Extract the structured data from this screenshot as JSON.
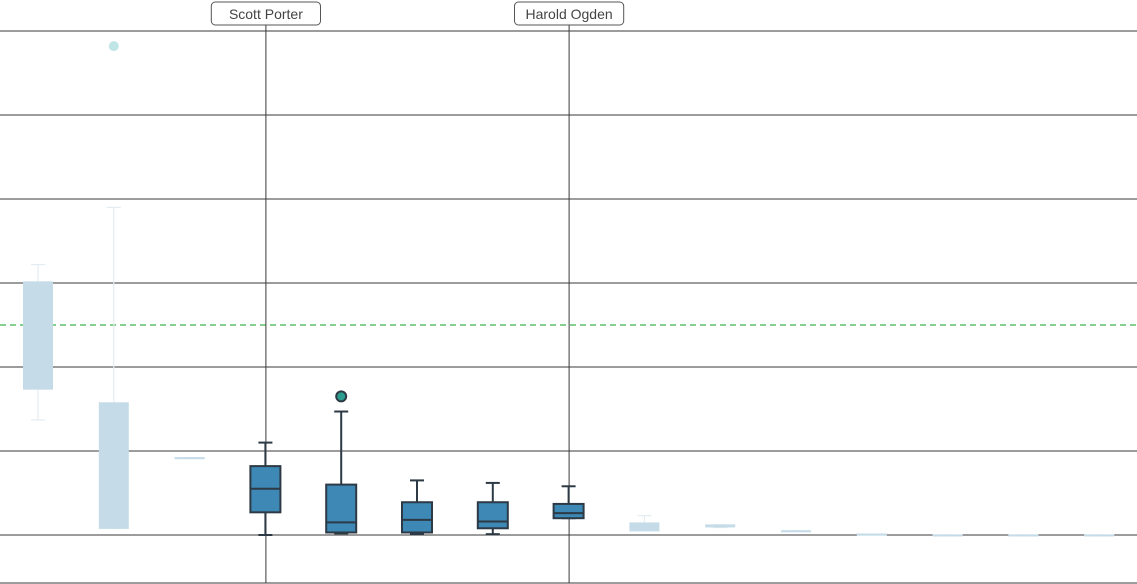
{
  "chart_data": {
    "type": "box",
    "title": "",
    "xlabel": "",
    "ylabel": "",
    "grid": true,
    "ylim": [
      -0.6,
      6.1
    ],
    "reference_line": {
      "y": 2.5,
      "style": "dashed",
      "color": "#3cb44b"
    },
    "annotations": [
      {
        "label": "Scott Porter",
        "category_index": 3
      },
      {
        "label": "Harold Ogden",
        "category_index": 7
      }
    ],
    "boxes": [
      {
        "min": 1.37,
        "q1": 1.73,
        "median": 2.3,
        "q3": 3.02,
        "max": 3.22,
        "outliers": [],
        "highlight": false
      },
      {
        "min": 0.08,
        "q1": 0.08,
        "median": 0.08,
        "q3": 1.58,
        "max": 3.9,
        "outliers": [
          5.82
        ],
        "highlight": false
      },
      {
        "min": 0.92,
        "q1": 0.92,
        "median": 0.92,
        "q3": 0.92,
        "max": 0.92,
        "outliers": [],
        "highlight": false
      },
      {
        "min": 0.0,
        "q1": 0.27,
        "median": 0.55,
        "q3": 0.82,
        "max": 1.1,
        "outliers": [],
        "highlight": true
      },
      {
        "min": 0.02,
        "q1": 0.03,
        "median": 0.15,
        "q3": 0.6,
        "max": 1.47,
        "outliers": [
          1.65
        ],
        "highlight": true
      },
      {
        "min": 0.01,
        "q1": 0.03,
        "median": 0.18,
        "q3": 0.39,
        "max": 0.65,
        "outliers": [],
        "highlight": true
      },
      {
        "min": 0.01,
        "q1": 0.08,
        "median": 0.16,
        "q3": 0.39,
        "max": 0.62,
        "outliers": [],
        "highlight": true
      },
      {
        "min": 0.2,
        "q1": 0.2,
        "median": 0.26,
        "q3": 0.37,
        "max": 0.58,
        "outliers": [],
        "highlight": true
      },
      {
        "min": 0.05,
        "q1": 0.05,
        "median": 0.05,
        "q3": 0.15,
        "max": 0.23,
        "outliers": [],
        "highlight": false
      },
      {
        "min": 0.09,
        "q1": 0.09,
        "median": 0.12,
        "q3": 0.12,
        "max": 0.12,
        "outliers": [],
        "highlight": false
      },
      {
        "min": 0.05,
        "q1": 0.05,
        "median": 0.05,
        "q3": 0.05,
        "max": 0.05,
        "outliers": [],
        "highlight": false
      },
      {
        "min": 0.01,
        "q1": 0.01,
        "median": 0.01,
        "q3": 0.01,
        "max": 0.01,
        "outliers": [],
        "highlight": false
      },
      {
        "min": 0.0,
        "q1": 0.0,
        "median": 0.0,
        "q3": 0.0,
        "max": 0.0,
        "outliers": [],
        "highlight": false
      },
      {
        "min": 0.0,
        "q1": 0.0,
        "median": 0.0,
        "q3": 0.0,
        "max": 0.0,
        "outliers": [],
        "highlight": false
      },
      {
        "min": 0.0,
        "q1": 0.0,
        "median": 0.0,
        "q3": 0.0,
        "max": 0.0,
        "outliers": [],
        "highlight": false
      }
    ],
    "colors": {
      "highlight_fill": "#3d88b5",
      "highlight_stroke": "#2d3a45",
      "muted_fill": "#c5dce8",
      "muted_stroke": "#e3ecf1",
      "outlier_highlight": "#2a9d8f",
      "outlier_muted": "#bfe5e6",
      "grid": "#3a3a3a"
    }
  }
}
